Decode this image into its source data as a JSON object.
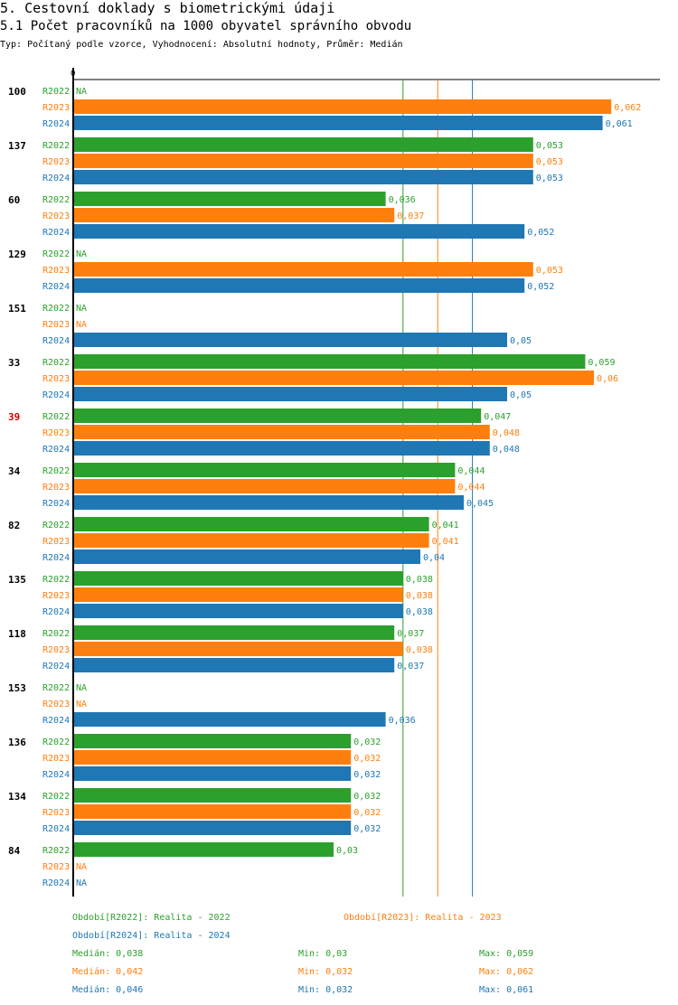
{
  "header": {
    "title": "5. Cestovní doklady s biometrickými údaji",
    "subtitle": "5.1 Počet pracovníků na 1000 obyvatel správního obvodu",
    "meta": "Typ: Počítaný podle vzorce, Vyhodnocení: Absolutní hodnoty, Průměr: Medián"
  },
  "colors": {
    "R2022": "#2ca02c",
    "R2023": "#ff7f0e",
    "R2024": "#1f77b4",
    "highlight": "#cc0000",
    "axis": "#000000"
  },
  "chart_data": {
    "type": "bar",
    "orientation": "horizontal",
    "axis_zero_label": "0",
    "xlim": [
      0,
      0.0625
    ],
    "series_names": [
      "R2022",
      "R2023",
      "R2024"
    ],
    "na_label": "NA",
    "groups": [
      {
        "id": "100",
        "highlight": false,
        "values": [
          null,
          0.062,
          0.061
        ],
        "labels": [
          "NA",
          "0,062",
          "0,061"
        ]
      },
      {
        "id": "137",
        "highlight": false,
        "values": [
          0.053,
          0.053,
          0.053
        ],
        "labels": [
          "0,053",
          "0,053",
          "0,053"
        ]
      },
      {
        "id": "60",
        "highlight": false,
        "values": [
          0.036,
          0.037,
          0.052
        ],
        "labels": [
          "0,036",
          "0,037",
          "0,052"
        ]
      },
      {
        "id": "129",
        "highlight": false,
        "values": [
          null,
          0.053,
          0.052
        ],
        "labels": [
          "NA",
          "0,053",
          "0,052"
        ]
      },
      {
        "id": "151",
        "highlight": false,
        "values": [
          null,
          null,
          0.05
        ],
        "labels": [
          "NA",
          "NA",
          "0,05"
        ]
      },
      {
        "id": "33",
        "highlight": false,
        "values": [
          0.059,
          0.06,
          0.05
        ],
        "labels": [
          "0,059",
          "0,06",
          "0,05"
        ]
      },
      {
        "id": "39",
        "highlight": true,
        "values": [
          0.047,
          0.048,
          0.048
        ],
        "labels": [
          "0,047",
          "0,048",
          "0,048"
        ]
      },
      {
        "id": "34",
        "highlight": false,
        "values": [
          0.044,
          0.044,
          0.045
        ],
        "labels": [
          "0,044",
          "0,044",
          "0,045"
        ]
      },
      {
        "id": "82",
        "highlight": false,
        "values": [
          0.041,
          0.041,
          0.04
        ],
        "labels": [
          "0,041",
          "0,041",
          "0,04"
        ]
      },
      {
        "id": "135",
        "highlight": false,
        "values": [
          0.038,
          0.038,
          0.038
        ],
        "labels": [
          "0,038",
          "0,038",
          "0,038"
        ]
      },
      {
        "id": "118",
        "highlight": false,
        "values": [
          0.037,
          0.038,
          0.037
        ],
        "labels": [
          "0,037",
          "0,038",
          "0,037"
        ]
      },
      {
        "id": "153",
        "highlight": false,
        "values": [
          null,
          null,
          0.036
        ],
        "labels": [
          "NA",
          "NA",
          "0,036"
        ]
      },
      {
        "id": "136",
        "highlight": false,
        "values": [
          0.032,
          0.032,
          0.032
        ],
        "labels": [
          "0,032",
          "0,032",
          "0,032"
        ]
      },
      {
        "id": "134",
        "highlight": false,
        "values": [
          0.032,
          0.032,
          0.032
        ],
        "labels": [
          "0,032",
          "0,032",
          "0,032"
        ]
      },
      {
        "id": "84",
        "highlight": false,
        "values": [
          0.03,
          null,
          null
        ],
        "labels": [
          "0,03",
          "NA",
          "NA"
        ]
      }
    ],
    "median_lines": [
      {
        "series": "R2022",
        "value": 0.038
      },
      {
        "series": "R2023",
        "value": 0.042
      },
      {
        "series": "R2024",
        "value": 0.046
      }
    ],
    "legend": [
      {
        "series": "R2022",
        "text": "Období[R2022]: Realita - 2022"
      },
      {
        "series": "R2023",
        "text": "Období[R2023]: Realita - 2023"
      },
      {
        "series": "R2024",
        "text": "Období[R2024]: Realita - 2024"
      }
    ],
    "stats": [
      {
        "series": "R2022",
        "median": "Medián: 0,038",
        "min": "Min: 0,03",
        "max": "Max: 0,059"
      },
      {
        "series": "R2023",
        "median": "Medián: 0,042",
        "min": "Min: 0,032",
        "max": "Max: 0,062"
      },
      {
        "series": "R2024",
        "median": "Medián: 0,046",
        "min": "Min: 0,032",
        "max": "Max: 0,061"
      }
    ]
  }
}
